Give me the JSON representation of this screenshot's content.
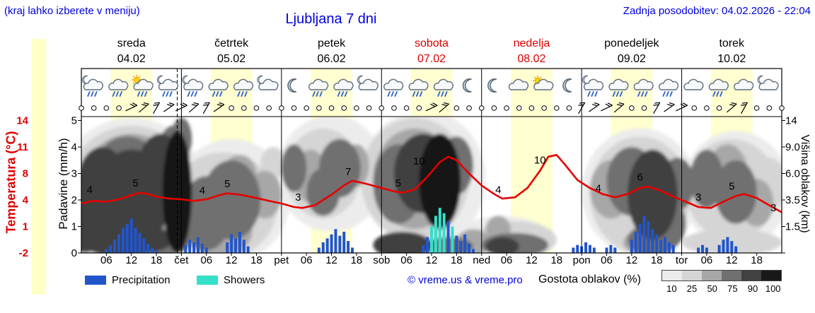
{
  "header": {
    "hint": "(kraj lahko izberete v meniju)",
    "title": "Ljubljana 7 dni",
    "updated": "Zadnja posodobitev: 04.02.2026 - 22:04"
  },
  "axes": {
    "temperature": {
      "title": "Temperatura (°C)",
      "ticks": [
        "14",
        "11",
        "8",
        "4",
        "1",
        "-2"
      ]
    },
    "precipitation": {
      "title": "Padavine (mm/h)",
      "ticks": [
        "5",
        "4",
        "3",
        "2",
        "1",
        "0"
      ]
    },
    "cloud_height": {
      "title": "Višina oblakov (km)",
      "ticks": [
        "14",
        "9.0",
        "6.0",
        "3.5",
        "1.5"
      ]
    }
  },
  "days": [
    {
      "name": "sreda",
      "date": "04.02",
      "highlight": false
    },
    {
      "name": "četrtek",
      "date": "05.02",
      "highlight": false
    },
    {
      "name": "petek",
      "date": "06.02",
      "highlight": false
    },
    {
      "name": "sobota",
      "date": "07.02",
      "highlight": true
    },
    {
      "name": "nedelja",
      "date": "08.02",
      "highlight": true
    },
    {
      "name": "ponedeljek",
      "date": "09.02",
      "highlight": false
    },
    {
      "name": "torek",
      "date": "10.02",
      "highlight": false
    }
  ],
  "x_labels": [
    [
      6,
      "06"
    ],
    [
      12,
      "12"
    ],
    [
      18,
      "18"
    ],
    [
      24,
      "čet"
    ],
    [
      30,
      "06"
    ],
    [
      36,
      "12"
    ],
    [
      42,
      "18"
    ],
    [
      48,
      "pet"
    ],
    [
      54,
      "06"
    ],
    [
      60,
      "12"
    ],
    [
      66,
      "18"
    ],
    [
      72,
      "sob"
    ],
    [
      78,
      "06"
    ],
    [
      84,
      "12"
    ],
    [
      90,
      "18"
    ],
    [
      96,
      "ned"
    ],
    [
      102,
      "06"
    ],
    [
      108,
      "12"
    ],
    [
      114,
      "18"
    ],
    [
      120,
      "pon"
    ],
    [
      126,
      "06"
    ],
    [
      132,
      "12"
    ],
    [
      138,
      "18"
    ],
    [
      144,
      "tor"
    ],
    [
      150,
      "06"
    ],
    [
      156,
      "12"
    ],
    [
      162,
      "18"
    ]
  ],
  "legend": {
    "precipitation": "Precipitation",
    "showers": "Showers",
    "credit": "© vreme.us & vreme.pro",
    "cloud": "Gostota oblakov (%)",
    "cloud_scale": [
      "10",
      "25",
      "50",
      "75",
      "90",
      "100"
    ]
  },
  "colors": {
    "blue_text": "#0000dd",
    "red_text": "#dd0000",
    "temp_line": "#e60000",
    "rain": "#2255cc",
    "shower": "#35dfc8",
    "day_band": "#ffffd0",
    "left_strip": "#ffffc6",
    "cloud_shades": {
      "10": "#ececec",
      "25": "#d5d5d5",
      "50": "#a7a7a7",
      "75": "#707070",
      "90": "#414141",
      "100": "#181818"
    }
  },
  "chart_data": {
    "type": "meteogram",
    "hours_span": 168,
    "now_hour": 23,
    "daylight": {
      "start": 7,
      "end": 17
    },
    "temperature": {
      "unit": "°C",
      "series": [
        [
          0,
          3.6
        ],
        [
          3,
          3.9
        ],
        [
          6,
          3.8
        ],
        [
          9,
          4.1
        ],
        [
          12,
          4.7
        ],
        [
          14,
          5.1
        ],
        [
          16,
          4.9
        ],
        [
          18,
          4.5
        ],
        [
          21,
          4.2
        ],
        [
          24,
          4.1
        ],
        [
          27,
          3.9
        ],
        [
          30,
          4.1
        ],
        [
          33,
          4.7
        ],
        [
          35,
          5.0
        ],
        [
          38,
          4.8
        ],
        [
          42,
          4.3
        ],
        [
          45,
          3.9
        ],
        [
          48,
          3.6
        ],
        [
          51,
          3.2
        ],
        [
          53,
          3.1
        ],
        [
          56,
          3.4
        ],
        [
          60,
          4.8
        ],
        [
          63,
          6.2
        ],
        [
          65,
          6.9
        ],
        [
          68,
          6.5
        ],
        [
          72,
          5.8
        ],
        [
          75,
          5.3
        ],
        [
          77,
          5.1
        ],
        [
          80,
          5.6
        ],
        [
          83,
          7.5
        ],
        [
          86,
          9.3
        ],
        [
          88,
          9.9
        ],
        [
          90,
          9.5
        ],
        [
          93,
          8.0
        ],
        [
          96,
          6.2
        ],
        [
          99,
          4.9
        ],
        [
          101,
          4.2
        ],
        [
          104,
          4.4
        ],
        [
          107,
          5.8
        ],
        [
          110,
          8.3
        ],
        [
          112,
          9.9
        ],
        [
          114,
          10.1
        ],
        [
          116,
          9.0
        ],
        [
          119,
          7.0
        ],
        [
          122,
          5.8
        ],
        [
          125,
          4.9
        ],
        [
          128,
          4.4
        ],
        [
          131,
          4.9
        ],
        [
          134,
          5.8
        ],
        [
          136,
          6.0
        ],
        [
          139,
          5.4
        ],
        [
          142,
          4.5
        ],
        [
          145,
          3.8
        ],
        [
          148,
          3.2
        ],
        [
          151,
          3.1
        ],
        [
          154,
          3.8
        ],
        [
          157,
          4.6
        ],
        [
          159,
          4.9
        ],
        [
          162,
          4.3
        ],
        [
          165,
          3.4
        ],
        [
          168,
          2.6
        ]
      ],
      "labels": [
        [
          2,
          "4",
          4.6
        ],
        [
          13,
          "5",
          5.6
        ],
        [
          29,
          "4",
          4.5
        ],
        [
          35,
          "5",
          5.5
        ],
        [
          52,
          "3",
          3.6
        ],
        [
          64,
          "7",
          7.3
        ],
        [
          76,
          "5",
          5.6
        ],
        [
          81,
          "10",
          8.7
        ],
        [
          100,
          "4",
          4.6
        ],
        [
          110,
          "10",
          8.8
        ],
        [
          124,
          "4",
          4.8
        ],
        [
          134,
          "6",
          6.5
        ],
        [
          148,
          "3",
          3.6
        ],
        [
          156,
          "5",
          5.1
        ],
        [
          166,
          "3",
          2.4
        ]
      ]
    },
    "precipitation": [
      [
        6,
        0.15,
        "r"
      ],
      [
        7,
        0.3,
        "r"
      ],
      [
        8,
        0.5,
        "r"
      ],
      [
        9,
        0.7,
        "r"
      ],
      [
        10,
        0.95,
        "r"
      ],
      [
        11,
        1.1,
        "r"
      ],
      [
        12,
        1.3,
        "r"
      ],
      [
        13,
        0.95,
        "r"
      ],
      [
        14,
        0.75,
        "r"
      ],
      [
        15,
        0.55,
        "r"
      ],
      [
        16,
        0.35,
        "r"
      ],
      [
        17,
        0.2,
        "r"
      ],
      [
        18,
        0.1,
        "r"
      ],
      [
        25,
        0.3,
        "r"
      ],
      [
        26,
        0.5,
        "r"
      ],
      [
        27,
        0.4,
        "r"
      ],
      [
        28,
        0.6,
        "r"
      ],
      [
        29,
        0.35,
        "r"
      ],
      [
        30,
        0.2,
        "r"
      ],
      [
        35,
        0.4,
        "r"
      ],
      [
        36,
        0.7,
        "r"
      ],
      [
        37,
        0.55,
        "r"
      ],
      [
        38,
        0.8,
        "r"
      ],
      [
        39,
        0.5,
        "r"
      ],
      [
        40,
        0.25,
        "r"
      ],
      [
        57,
        0.2,
        "r"
      ],
      [
        58,
        0.4,
        "r"
      ],
      [
        59,
        0.55,
        "r"
      ],
      [
        60,
        0.7,
        "r"
      ],
      [
        61,
        0.9,
        "r"
      ],
      [
        62,
        0.65,
        "r"
      ],
      [
        63,
        0.8,
        "r"
      ],
      [
        64,
        0.45,
        "r"
      ],
      [
        65,
        0.2,
        "r"
      ],
      [
        82,
        0.3,
        "r"
      ],
      [
        83,
        0.6,
        "r"
      ],
      [
        84,
        1.0,
        "s"
      ],
      [
        85,
        1.4,
        "s"
      ],
      [
        86,
        1.7,
        "s"
      ],
      [
        87,
        1.5,
        "s"
      ],
      [
        88,
        1.2,
        "r"
      ],
      [
        89,
        1.0,
        "s"
      ],
      [
        90,
        0.65,
        "r"
      ],
      [
        91,
        0.45,
        "r"
      ],
      [
        92,
        0.7,
        "r"
      ],
      [
        93,
        0.35,
        "r"
      ],
      [
        94,
        0.15,
        "r"
      ],
      [
        118,
        0.2,
        "r"
      ],
      [
        119,
        0.3,
        "r"
      ],
      [
        120,
        0.25,
        "r"
      ],
      [
        121,
        0.4,
        "r"
      ],
      [
        122,
        0.3,
        "r"
      ],
      [
        123,
        0.2,
        "r"
      ],
      [
        126,
        0.2,
        "r"
      ],
      [
        127,
        0.3,
        "r"
      ],
      [
        128,
        0.2,
        "r"
      ],
      [
        132,
        0.5,
        "r"
      ],
      [
        133,
        0.8,
        "r"
      ],
      [
        134,
        1.1,
        "r"
      ],
      [
        135,
        1.4,
        "r"
      ],
      [
        136,
        1.2,
        "r"
      ],
      [
        137,
        0.9,
        "r"
      ],
      [
        138,
        0.7,
        "r"
      ],
      [
        139,
        0.5,
        "r"
      ],
      [
        140,
        0.6,
        "r"
      ],
      [
        141,
        0.4,
        "r"
      ],
      [
        142,
        0.3,
        "r"
      ],
      [
        148,
        0.2,
        "r"
      ],
      [
        149,
        0.3,
        "r"
      ],
      [
        150,
        0.2,
        "r"
      ],
      [
        153,
        0.3,
        "r"
      ],
      [
        154,
        0.5,
        "r"
      ],
      [
        155,
        0.6,
        "r"
      ],
      [
        156,
        0.45,
        "r"
      ],
      [
        157,
        0.25,
        "r"
      ]
    ],
    "clouds": [
      [
        12,
        2.2,
        18,
        2.9,
        10
      ],
      [
        36,
        2.0,
        14,
        2.3,
        10
      ],
      [
        60,
        3.0,
        13,
        2.2,
        10
      ],
      [
        82,
        2.8,
        15,
        2.6,
        10
      ],
      [
        101,
        0.6,
        11,
        0.8,
        10
      ],
      [
        134,
        2.3,
        14,
        2.4,
        10
      ],
      [
        157,
        2.4,
        13,
        2.2,
        10
      ],
      [
        12,
        2.2,
        16,
        2.6,
        25
      ],
      [
        34,
        1.8,
        13,
        2.0,
        25
      ],
      [
        46,
        3.4,
        3,
        0.6,
        25
      ],
      [
        58,
        3.0,
        9,
        1.7,
        25
      ],
      [
        80,
        2.8,
        13,
        2.3,
        25
      ],
      [
        104,
        0.5,
        10,
        0.7,
        25
      ],
      [
        134,
        2.2,
        12,
        2.2,
        25
      ],
      [
        156,
        2.4,
        11,
        1.9,
        25
      ],
      [
        165,
        2.6,
        4,
        1.0,
        25
      ],
      [
        156,
        0.4,
        12,
        0.5,
        25
      ],
      [
        12,
        2.2,
        13,
        2.3,
        50
      ],
      [
        33,
        0.8,
        8,
        0.9,
        50
      ],
      [
        38,
        3.0,
        4,
        0.7,
        50
      ],
      [
        44,
        2.2,
        4,
        0.9,
        50
      ],
      [
        55,
        2.9,
        4,
        1.0,
        50
      ],
      [
        66,
        3.3,
        3,
        0.8,
        50
      ],
      [
        80,
        2.8,
        10,
        1.9,
        50
      ],
      [
        94,
        0.4,
        4,
        0.5,
        50
      ],
      [
        100,
        0.9,
        3,
        0.5,
        50
      ],
      [
        127,
        2.4,
        5,
        1.1,
        50
      ],
      [
        136,
        0.4,
        6,
        0.5,
        50
      ],
      [
        155,
        2.9,
        5,
        1.2,
        50
      ],
      [
        162,
        1.9,
        4,
        0.9,
        50
      ],
      [
        6,
        1.5,
        8,
        1.6,
        75
      ],
      [
        11,
        3.4,
        7,
        1.0,
        75
      ],
      [
        22,
        3.6,
        4,
        1.2,
        75
      ],
      [
        24,
        4.3,
        2.5,
        0.8,
        75
      ],
      [
        20,
        0.4,
        6,
        0.5,
        75
      ],
      [
        30,
        1.5,
        6,
        1.4,
        75
      ],
      [
        36,
        2.0,
        7,
        1.5,
        75
      ],
      [
        51,
        3.2,
        3,
        0.9,
        75
      ],
      [
        58,
        2.3,
        4,
        0.9,
        75
      ],
      [
        62,
        3.2,
        5,
        1.1,
        75
      ],
      [
        76,
        2.6,
        6,
        1.5,
        75
      ],
      [
        90,
        3.3,
        4,
        1.1,
        75
      ],
      [
        88,
        0.25,
        6,
        0.35,
        75
      ],
      [
        104,
        0.3,
        8,
        0.45,
        75
      ],
      [
        132,
        2.7,
        6,
        1.3,
        75
      ],
      [
        140,
        1.1,
        5,
        1.0,
        75
      ],
      [
        143,
        2.6,
        4,
        1.0,
        75
      ],
      [
        137,
        0.5,
        6,
        0.6,
        75
      ],
      [
        150,
        2.8,
        4,
        1.1,
        75
      ],
      [
        157,
        2.3,
        5,
        1.2,
        75
      ],
      [
        1,
        1.2,
        4,
        1.2,
        90
      ],
      [
        5,
        2.6,
        6,
        1.4,
        90
      ],
      [
        12,
        2.0,
        9,
        1.9,
        90
      ],
      [
        19,
        2.8,
        6,
        1.7,
        90
      ],
      [
        10,
        0.5,
        12,
        0.6,
        90
      ],
      [
        82,
        3.0,
        7,
        1.5,
        90
      ],
      [
        77,
        0.3,
        7,
        0.5,
        90
      ],
      [
        101,
        0.25,
        4,
        0.35,
        90
      ],
      [
        137,
        2.2,
        6,
        1.7,
        90
      ],
      [
        23,
        2.3,
        3.5,
        2.3,
        100
      ],
      [
        86,
        2.7,
        5,
        1.8,
        100
      ]
    ],
    "wind": "oooobbbbbbbboooooooooooooooobboooooooooobbbboobbbooobbooo",
    "icons": [
      "moon-rain",
      "rain",
      "sun-rain",
      "moon-rain",
      "moon-rain",
      "rain",
      "rain",
      "moon-cloud",
      "moon",
      "rain",
      "rain",
      "moon-cloud",
      "rain",
      "rain",
      "rain",
      "moon",
      "moon",
      "cloud",
      "sun-cloud",
      "moon",
      "moon-rain",
      "rain",
      "rain",
      "rain",
      "cloud",
      "rain",
      "cloud",
      "moon-cloud"
    ]
  }
}
